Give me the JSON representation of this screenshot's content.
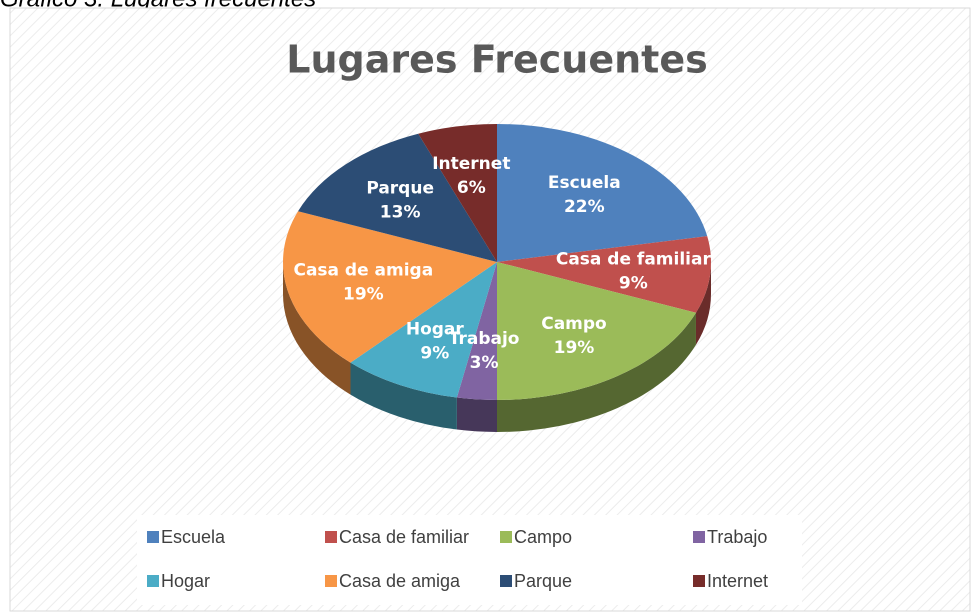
{
  "caption": "Gráfico 3. Lugares frecuentes",
  "chart_data": {
    "type": "pie",
    "title": "Lugares Frecuentes",
    "categories": [
      "Escuela",
      "Casa de familiar",
      "Campo",
      "Trabajo",
      "Hogar",
      "Casa de amiga",
      "Parque",
      "Internet"
    ],
    "values": [
      22,
      9,
      19,
      3,
      9,
      19,
      13,
      6
    ],
    "value_labels": [
      "22%",
      "9%",
      "19%",
      "3%",
      "9%",
      "19%",
      "13%",
      "6%"
    ],
    "colors": [
      "#4f81bd",
      "#c0504d",
      "#9bbb59",
      "#8064a2",
      "#4bacc6",
      "#f79646",
      "#2c4d75",
      "#772c2a"
    ],
    "legend": "bottom"
  }
}
